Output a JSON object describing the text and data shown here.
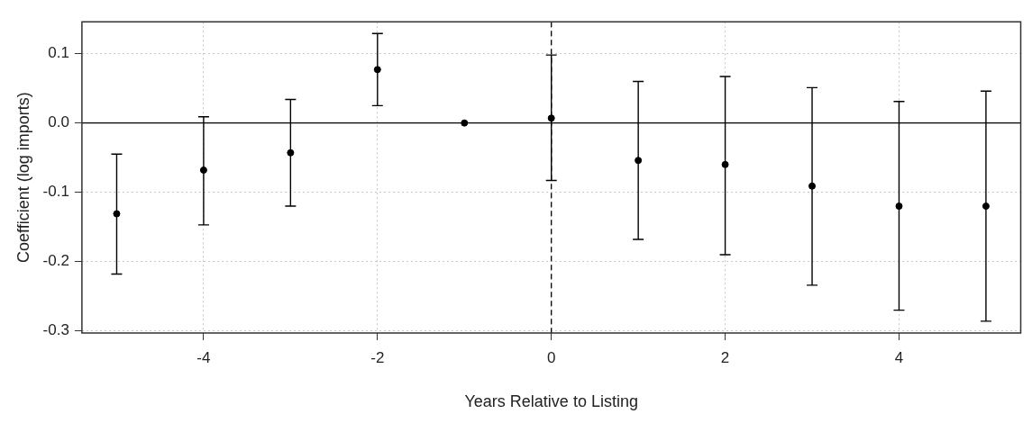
{
  "chart_data": {
    "type": "scatter",
    "xlabel": "Years Relative to Listing",
    "ylabel": "Coefficient (log imports)",
    "x": [
      -5,
      -4,
      -3,
      -2,
      -1,
      0,
      1,
      2,
      3,
      4,
      5
    ],
    "series": [
      {
        "color": "#000000",
        "values": [
          -0.131,
          -0.068,
          -0.043,
          0.077,
          0,
          0.007,
          -0.054,
          -0.06,
          -0.091,
          -0.12,
          -0.12
        ],
        "errors": [
          [
            -0.218,
            -0.045
          ],
          [
            -0.147,
            0.009
          ],
          [
            -0.12,
            0.034
          ],
          [
            0.025,
            0.129
          ],
          null,
          [
            -0.083,
            0.098
          ],
          [
            -0.168,
            0.06
          ],
          [
            -0.19,
            0.067
          ],
          [
            -0.234,
            0.051
          ],
          [
            -0.27,
            0.031
          ],
          [
            -0.286,
            0.046
          ]
        ]
      }
    ],
    "xlim": [
      -5.4,
      5.4
    ],
    "ylim": [
      -0.303,
      0.146
    ],
    "xticks": [
      -4,
      -2,
      0,
      2,
      4
    ],
    "yticks": [
      -0.3,
      -0.2,
      -0.1,
      {
        "value": 0,
        "label": "0.0"
      },
      0.1
    ],
    "ref_lines": [
      {
        "axis": "y",
        "value": 0,
        "line_style": "solid"
      },
      {
        "axis": "x",
        "value": 0,
        "line_style": "dashed"
      }
    ],
    "grid": true,
    "legend": false,
    "marker": "circle"
  }
}
